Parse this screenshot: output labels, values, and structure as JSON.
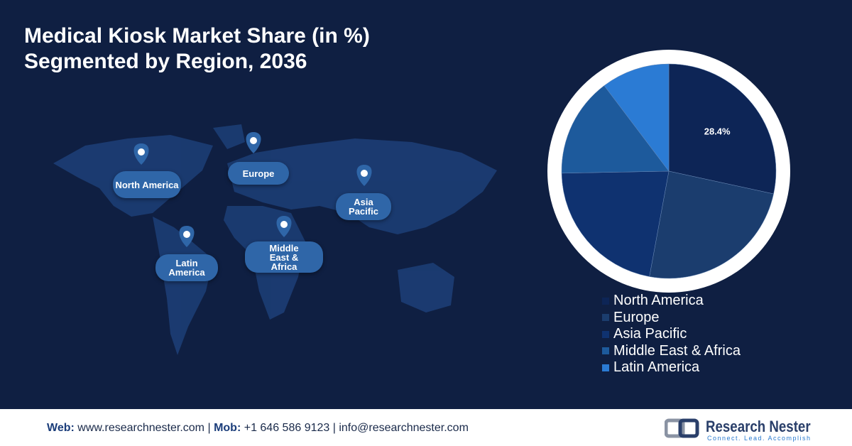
{
  "chart_data": {
    "type": "pie",
    "title": "Medical Kiosk Market Share (in %)",
    "subtitle": "Segmented by Region, 2036",
    "categories": [
      "North America",
      "Europe",
      "Asia Pacific",
      "Middle East & Africa",
      "Latin America"
    ],
    "values": [
      28.4,
      24.5,
      21.8,
      15.0,
      10.3
    ],
    "value_labels": [
      "28.4%",
      null,
      null,
      null,
      null
    ],
    "colors": [
      "#0d2556",
      "#1b3d6e",
      "#0f3270",
      "#1d5a9c",
      "#2b7bd4"
    ]
  },
  "map": {
    "labels": [
      "North America",
      "Europe",
      "Asia Pacific",
      "Latin America",
      "Middle East & Africa"
    ]
  },
  "footer": {
    "web_label": "Web:",
    "web": "www.researchnester.com |",
    "mob_label": "Mob:",
    "mob": "+1 646 586 9123 |",
    "email": "info@researchnester.com",
    "brand": "Research Nester",
    "tagline": "Connect. Lead. Accomplish"
  }
}
